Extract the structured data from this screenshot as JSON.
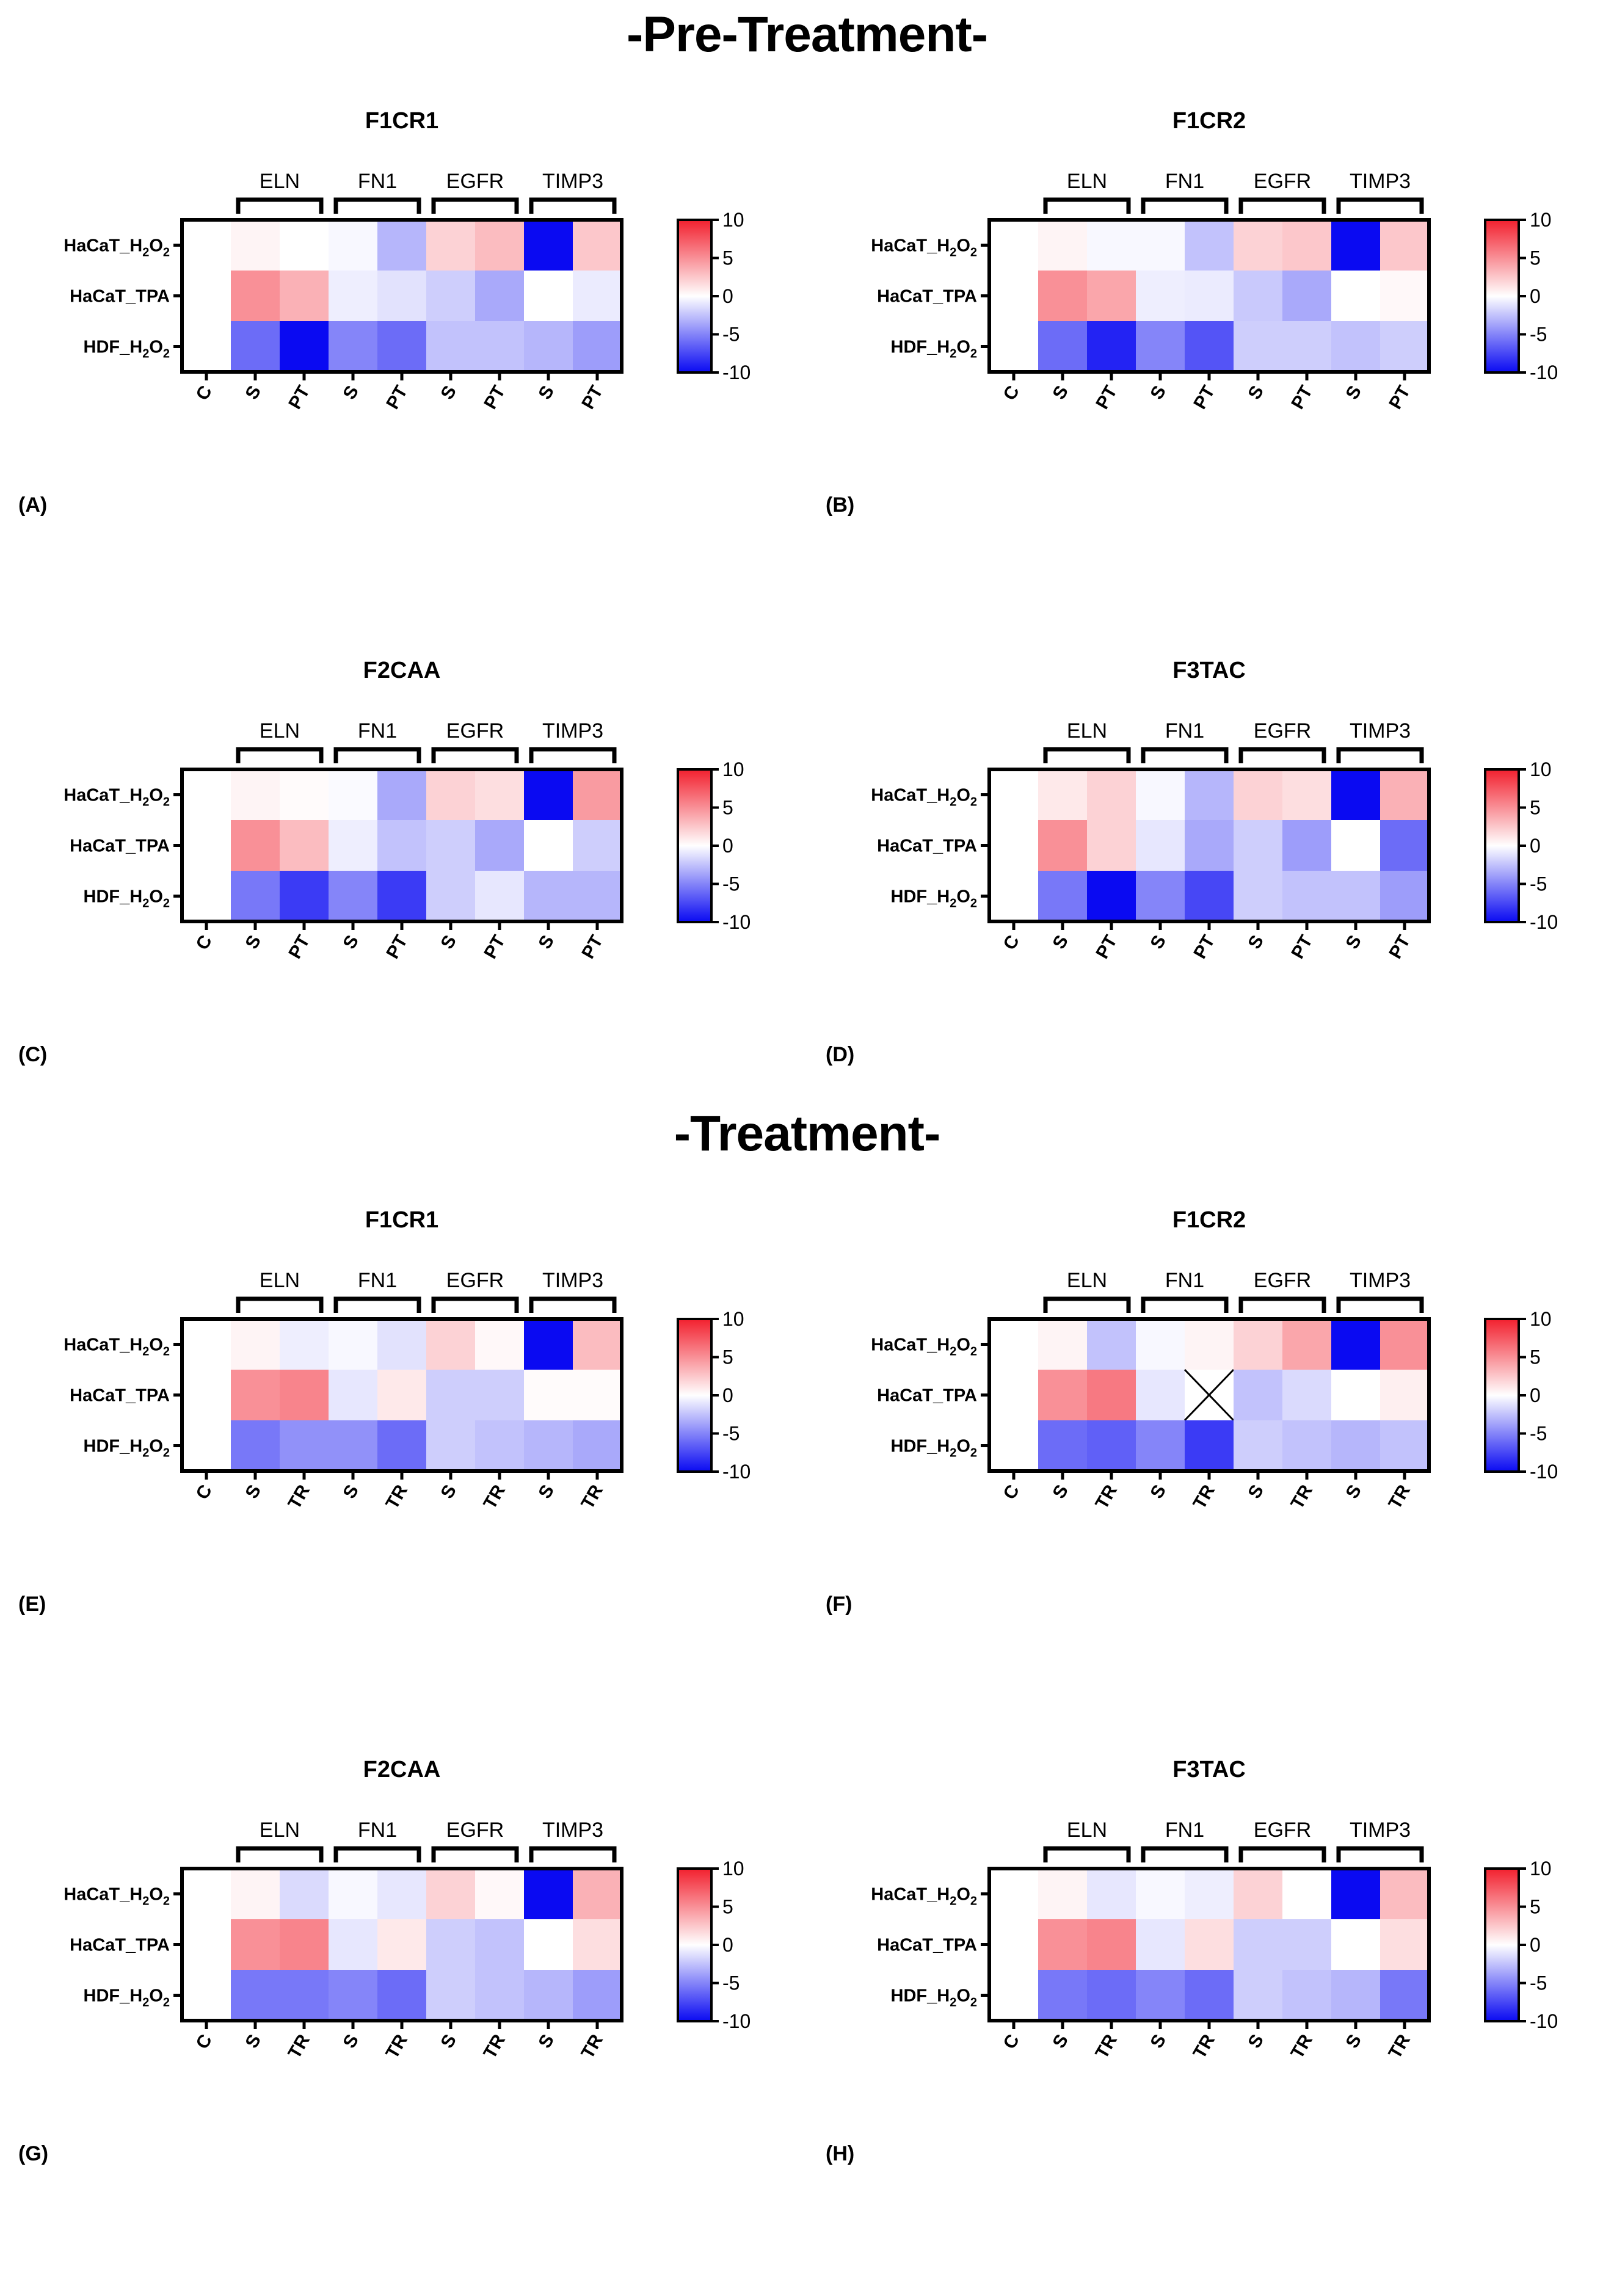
{
  "sections": [
    {
      "title": "-Pre-Treatment-"
    },
    {
      "title": "-Treatment-"
    }
  ],
  "colorscale": {
    "min": -10,
    "max": 10,
    "ticks": [
      "10",
      "5",
      "0",
      "-5",
      "-10"
    ],
    "colors": {
      "low": "#0a0af2",
      "mid": "#ffffff",
      "high": "#f2202e"
    }
  },
  "chart_data": [
    {
      "type": "heatmap",
      "letter": "(A)",
      "title": "F1CR1",
      "genes": [
        "ELN",
        "FN1",
        "EGFR",
        "TIMP3"
      ],
      "columns": [
        "C",
        "S",
        "PT",
        "S",
        "PT",
        "S",
        "PT",
        "S",
        "PT"
      ],
      "rows": [
        {
          "base": "HaCaT_H",
          "sub": "2",
          "mid": "O",
          "sub2": "2"
        },
        {
          "base": "HaCaT_TPA"
        },
        {
          "base": "HDF_H",
          "sub": "2",
          "mid": "O",
          "sub2": "2"
        }
      ],
      "values": [
        [
          0,
          0.5,
          0,
          -0.3,
          -3,
          2,
          3,
          -10,
          2.5
        ],
        [
          0,
          5,
          3.5,
          -0.7,
          -1.2,
          -2,
          -3.5,
          0,
          -0.8
        ],
        [
          0,
          -6,
          -10,
          -5,
          -6,
          -2.5,
          -2.5,
          -3,
          -4
        ]
      ]
    },
    {
      "type": "heatmap",
      "letter": "(B)",
      "title": "F1CR2",
      "genes": [
        "ELN",
        "FN1",
        "EGFR",
        "TIMP3"
      ],
      "columns": [
        "C",
        "S",
        "PT",
        "S",
        "PT",
        "S",
        "PT",
        "S",
        "PT"
      ],
      "rows": [
        {
          "base": "HaCaT_H",
          "sub": "2",
          "mid": "O",
          "sub2": "2"
        },
        {
          "base": "HaCaT_TPA"
        },
        {
          "base": "HDF_H",
          "sub": "2",
          "mid": "O",
          "sub2": "2"
        }
      ],
      "values": [
        [
          0,
          0.5,
          -0.3,
          -0.3,
          -2.5,
          2,
          2.5,
          -10,
          2.5
        ],
        [
          0,
          5,
          4,
          -0.7,
          -0.8,
          -2.2,
          -3.5,
          0,
          0.3
        ],
        [
          0,
          -6,
          -9,
          -5,
          -7,
          -2,
          -2,
          -2.5,
          -2
        ]
      ]
    },
    {
      "type": "heatmap",
      "letter": "(C)",
      "title": "F2CAA",
      "genes": [
        "ELN",
        "FN1",
        "EGFR",
        "TIMP3"
      ],
      "columns": [
        "C",
        "S",
        "PT",
        "S",
        "PT",
        "S",
        "PT",
        "S",
        "PT"
      ],
      "rows": [
        {
          "base": "HaCaT_H",
          "sub": "2",
          "mid": "O",
          "sub2": "2"
        },
        {
          "base": "HaCaT_TPA"
        },
        {
          "base": "HDF_H",
          "sub": "2",
          "mid": "O",
          "sub2": "2"
        }
      ],
      "values": [
        [
          0,
          0.5,
          0.2,
          -0.2,
          -3.5,
          2,
          1.5,
          -10,
          4.5
        ],
        [
          0,
          5,
          3,
          -0.7,
          -2.5,
          -2,
          -3.5,
          0,
          -2
        ],
        [
          0,
          -5.5,
          -8,
          -5,
          -8,
          -2,
          -1,
          -3,
          -3
        ]
      ]
    },
    {
      "type": "heatmap",
      "letter": "(D)",
      "title": "F3TAC",
      "genes": [
        "ELN",
        "FN1",
        "EGFR",
        "TIMP3"
      ],
      "columns": [
        "C",
        "S",
        "PT",
        "S",
        "PT",
        "S",
        "PT",
        "S",
        "PT"
      ],
      "rows": [
        {
          "base": "HaCaT_H",
          "sub": "2",
          "mid": "O",
          "sub2": "2"
        },
        {
          "base": "HaCaT_TPA"
        },
        {
          "base": "HDF_H",
          "sub": "2",
          "mid": "O",
          "sub2": "2"
        }
      ],
      "values": [
        [
          0,
          1,
          2,
          -0.3,
          -3,
          2,
          1.5,
          -10,
          3.5
        ],
        [
          0,
          5,
          2,
          -1,
          -3.5,
          -2,
          -4,
          0,
          -6
        ],
        [
          0,
          -5.5,
          -10,
          -5,
          -7.5,
          -2,
          -2.5,
          -2.5,
          -4
        ]
      ]
    },
    {
      "type": "heatmap",
      "letter": "(E)",
      "title": "F1CR1",
      "genes": [
        "ELN",
        "FN1",
        "EGFR",
        "TIMP3"
      ],
      "columns": [
        "C",
        "S",
        "TR",
        "S",
        "TR",
        "S",
        "TR",
        "S",
        "TR"
      ],
      "rows": [
        {
          "base": "HaCaT_H",
          "sub": "2",
          "mid": "O",
          "sub2": "2"
        },
        {
          "base": "HaCaT_TPA"
        },
        {
          "base": "HDF_H",
          "sub": "2",
          "mid": "O",
          "sub2": "2"
        }
      ],
      "values": [
        [
          0,
          0.5,
          -0.7,
          -0.3,
          -1.2,
          2,
          0.3,
          -10,
          3
        ],
        [
          0,
          5,
          5.5,
          -1,
          1,
          -2,
          -2,
          0.2,
          0.2
        ],
        [
          0,
          -5.5,
          -4.5,
          -4.5,
          -6,
          -2,
          -2.5,
          -3,
          -3.5
        ]
      ]
    },
    {
      "type": "heatmap",
      "letter": "(F)",
      "title": "F1CR2",
      "genes": [
        "ELN",
        "FN1",
        "EGFR",
        "TIMP3"
      ],
      "columns": [
        "C",
        "S",
        "TR",
        "S",
        "TR",
        "S",
        "TR",
        "S",
        "TR"
      ],
      "rows": [
        {
          "base": "HaCaT_H",
          "sub": "2",
          "mid": "O",
          "sub2": "2"
        },
        {
          "base": "HaCaT_TPA"
        },
        {
          "base": "HDF_H",
          "sub": "2",
          "mid": "O",
          "sub2": "2"
        }
      ],
      "values": [
        [
          0,
          0.5,
          -2.5,
          -0.3,
          0.5,
          2,
          4,
          -10,
          5
        ],
        [
          0,
          5,
          6,
          -1,
          null,
          -2.5,
          -1.5,
          0,
          0.7
        ],
        [
          0,
          -6,
          -6.5,
          -5,
          -8,
          -2,
          -2.5,
          -3,
          -2.5
        ]
      ],
      "missing_cell": {
        "row": 1,
        "col": 4
      }
    },
    {
      "type": "heatmap",
      "letter": "(G)",
      "title": "F2CAA",
      "genes": [
        "ELN",
        "FN1",
        "EGFR",
        "TIMP3"
      ],
      "columns": [
        "C",
        "S",
        "TR",
        "S",
        "TR",
        "S",
        "TR",
        "S",
        "TR"
      ],
      "rows": [
        {
          "base": "HaCaT_H",
          "sub": "2",
          "mid": "O",
          "sub2": "2"
        },
        {
          "base": "HaCaT_TPA"
        },
        {
          "base": "HDF_H",
          "sub": "2",
          "mid": "O",
          "sub2": "2"
        }
      ],
      "values": [
        [
          0,
          0.5,
          -1.5,
          -0.3,
          -1,
          2,
          0.3,
          -10,
          3.5
        ],
        [
          0,
          5,
          5.5,
          -1,
          1,
          -2,
          -2.5,
          0,
          1.5
        ],
        [
          0,
          -5.5,
          -5.5,
          -5,
          -6,
          -2,
          -2.5,
          -3,
          -4
        ]
      ]
    },
    {
      "type": "heatmap",
      "letter": "(H)",
      "title": "F3TAC",
      "genes": [
        "ELN",
        "FN1",
        "EGFR",
        "TIMP3"
      ],
      "columns": [
        "C",
        "S",
        "TR",
        "S",
        "TR",
        "S",
        "TR",
        "S",
        "TR"
      ],
      "rows": [
        {
          "base": "HaCaT_H",
          "sub": "2",
          "mid": "O",
          "sub2": "2"
        },
        {
          "base": "HaCaT_TPA"
        },
        {
          "base": "HDF_H",
          "sub": "2",
          "mid": "O",
          "sub2": "2"
        }
      ],
      "values": [
        [
          0,
          0.5,
          -1,
          -0.3,
          -0.7,
          2,
          0,
          -10,
          3
        ],
        [
          0,
          5,
          5.5,
          -1,
          1.5,
          -2,
          -2,
          0,
          1.5
        ],
        [
          0,
          -5.5,
          -6,
          -5,
          -6,
          -2,
          -2.5,
          -3,
          -5.5
        ]
      ]
    }
  ]
}
